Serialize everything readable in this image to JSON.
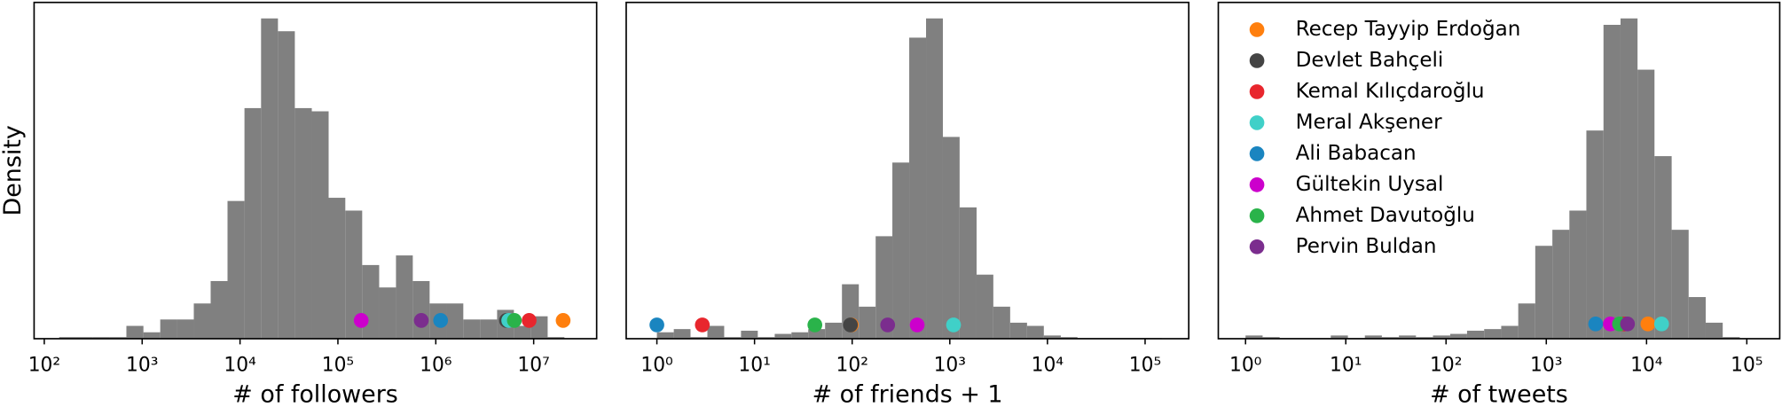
{
  "chart_data": [
    {
      "type": "histogram",
      "xlabel": "# of followers",
      "ylabel": "Density",
      "color": "#808080",
      "log_x": true,
      "xlim": [
        78.7,
        44000000
      ],
      "ylim": [
        0,
        1.05
      ],
      "xticks": [
        {
          "value": 100,
          "label": "10²"
        },
        {
          "value": 1000,
          "label": "10³"
        },
        {
          "value": 10000,
          "label": "10⁴"
        },
        {
          "value": 100000,
          "label": "10⁵"
        },
        {
          "value": 1000000,
          "label": "10⁶"
        },
        {
          "value": 10000000,
          "label": "10⁷"
        }
      ],
      "bins": [
        142,
        210,
        313,
        465,
        690,
        1030,
        1530,
        2270,
        3370,
        5010,
        7450,
        11100,
        16400,
        24400,
        36300,
        54100,
        80400,
        119000,
        177000,
        264000,
        392000,
        582000,
        865000,
        1290000,
        1910000,
        2840000,
        4230000,
        6280000,
        9330000,
        13900000,
        20600000
      ],
      "values": [
        0.005,
        0.005,
        0.005,
        0.005,
        0.04,
        0.02,
        0.06,
        0.06,
        0.11,
        0.18,
        0.43,
        0.72,
        1.0,
        0.96,
        0.72,
        0.71,
        0.44,
        0.4,
        0.23,
        0.16,
        0.26,
        0.18,
        0.11,
        0.11,
        0.06,
        0.06,
        0.09,
        0.04,
        0.07,
        0.005
      ],
      "series": [
        {
          "color": "#ff7f0e",
          "x": [
            20000000
          ],
          "values": [
            0.057
          ]
        },
        {
          "color": "#444444",
          "x": [
            5270000
          ],
          "values": [
            0.057
          ]
        },
        {
          "color": "#e8262d",
          "x": [
            8990000
          ],
          "values": [
            0.057
          ]
        },
        {
          "color": "#40d0c8",
          "x": [
            5560000
          ],
          "values": [
            0.057
          ]
        },
        {
          "color": "#1a85c0",
          "x": [
            1120000
          ],
          "values": [
            0.057
          ]
        },
        {
          "color": "#cc00cc",
          "x": [
            173000
          ],
          "values": [
            0.057
          ]
        },
        {
          "color": "#2ab34a",
          "x": [
            6350000
          ],
          "values": [
            0.057
          ]
        },
        {
          "color": "#7b2d8e",
          "x": [
            711000
          ],
          "values": [
            0.057
          ]
        }
      ]
    },
    {
      "type": "histogram",
      "xlabel": "# of friends + 1",
      "color": "#808080",
      "log_x": true,
      "xlim": [
        0.485,
        280000
      ],
      "ylim": [
        0,
        1.05
      ],
      "xticks": [
        {
          "value": 1,
          "label": "10⁰"
        },
        {
          "value": 10,
          "label": "10¹"
        },
        {
          "value": 100,
          "label": "10²"
        },
        {
          "value": 1000,
          "label": "10³"
        },
        {
          "value": 10000,
          "label": "10⁴"
        },
        {
          "value": 100000,
          "label": "10⁵"
        }
      ],
      "bins": [
        1,
        1.49,
        2.21,
        3.29,
        4.89,
        7.27,
        10.8,
        16.1,
        23.9,
        35.5,
        52.8,
        78.6,
        117,
        174,
        258,
        384,
        571,
        849,
        1260,
        1880,
        2790,
        4150,
        6180,
        9180,
        13700,
        20300,
        30200,
        44900,
        66800,
        99300,
        148000
      ],
      "values": [
        0.02,
        0.03,
        0.005,
        0.04,
        0.005,
        0.025,
        0.005,
        0.015,
        0.02,
        0.03,
        0.05,
        0.17,
        0.1,
        0.32,
        0.55,
        0.94,
        1.0,
        0.63,
        0.41,
        0.2,
        0.1,
        0.05,
        0.04,
        0.01,
        0.005,
        0.002,
        0.002,
        0.002,
        0.002,
        0.002
      ],
      "series": [
        {
          "color": "#ff7f0e",
          "x": [
            98
          ],
          "values": [
            0.043
          ]
        },
        {
          "color": "#444444",
          "x": [
            96
          ],
          "values": [
            0.043
          ]
        },
        {
          "color": "#e8262d",
          "x": [
            2.92
          ],
          "values": [
            0.043
          ]
        },
        {
          "color": "#40d0c8",
          "x": [
            1092
          ],
          "values": [
            0.043
          ]
        },
        {
          "color": "#1a85c0",
          "x": [
            1
          ],
          "values": [
            0.043
          ]
        },
        {
          "color": "#cc00cc",
          "x": [
            463
          ],
          "values": [
            0.043
          ]
        },
        {
          "color": "#2ab34a",
          "x": [
            41.5
          ],
          "values": [
            0.043
          ]
        },
        {
          "color": "#7b2d8e",
          "x": [
            231
          ],
          "values": [
            0.043
          ]
        }
      ]
    },
    {
      "type": "histogram",
      "xlabel": "# of tweets",
      "color": "#808080",
      "log_x": true,
      "legend": "upper left",
      "xlim": [
        0.535,
        213000
      ],
      "ylim": [
        0,
        1.05
      ],
      "xticks": [
        {
          "value": 1,
          "label": "10⁰"
        },
        {
          "value": 10,
          "label": "10¹"
        },
        {
          "value": 100,
          "label": "10²"
        },
        {
          "value": 1000,
          "label": "10³"
        },
        {
          "value": 10000,
          "label": "10⁴"
        },
        {
          "value": 100000,
          "label": "10⁵"
        }
      ],
      "bins": [
        1,
        1.48,
        2.19,
        3.24,
        4.79,
        7.08,
        10.5,
        15.5,
        22.9,
        33.9,
        50.1,
        74.1,
        110,
        162,
        240,
        355,
        525,
        776,
        1150,
        1700,
        2510,
        3720,
        5500,
        8130,
        12000,
        17800,
        26300,
        38900,
        57500,
        85100
      ],
      "values": [
        0.01,
        0.005,
        0.002,
        0.002,
        0.002,
        0.01,
        0.002,
        0.01,
        0.005,
        0.01,
        0.005,
        0.01,
        0.015,
        0.025,
        0.03,
        0.04,
        0.11,
        0.29,
        0.34,
        0.4,
        0.65,
        0.98,
        1.0,
        0.84,
        0.57,
        0.34,
        0.13,
        0.05,
        0.005
      ],
      "series": [
        {
          "name": "Recep Tayyip Erdoğan",
          "color": "#ff7f0e",
          "x": [
            10320
          ],
          "values": [
            0.046
          ]
        },
        {
          "name": "Devlet Bahçeli",
          "color": "#444444",
          "x": [
            5970
          ],
          "values": [
            0.046
          ]
        },
        {
          "name": "Kemal Kılıçdaroğlu",
          "color": "#e8262d",
          "x": [
            6000
          ],
          "values": [
            0.046
          ]
        },
        {
          "name": "Meral Akşener",
          "color": "#40d0c8",
          "x": [
            14120
          ],
          "values": [
            0.046
          ]
        },
        {
          "name": "Ali Babacan",
          "color": "#1a85c0",
          "x": [
            3105
          ],
          "values": [
            0.046
          ]
        },
        {
          "name": "Gültekin Uysal",
          "color": "#cc00cc",
          "x": [
            4355
          ],
          "values": [
            0.046
          ]
        },
        {
          "name": "Ahmet Davutoğlu",
          "color": "#2ab34a",
          "x": [
            5370
          ],
          "values": [
            0.046
          ]
        },
        {
          "name": "Pervin Buldan",
          "color": "#7b2d8e",
          "x": [
            6455
          ],
          "values": [
            0.046
          ]
        }
      ]
    }
  ]
}
